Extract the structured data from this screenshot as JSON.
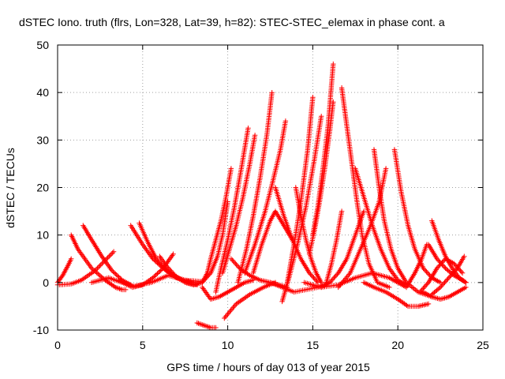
{
  "chart_data": {
    "type": "scatter",
    "title": "dSTEC Iono. truth (flrs, Lon=328, Lat=39, h=82): STEC-STEC_elemax in phase cont. a",
    "xlabel": "GPS time / hours of day 013 of year 2015",
    "ylabel": "dSTEC  / TECUs",
    "xlim": [
      0,
      25
    ],
    "ylim": [
      -10,
      50
    ],
    "xticks": [
      0,
      5,
      10,
      15,
      20,
      25
    ],
    "yticks": [
      -10,
      0,
      10,
      20,
      30,
      40,
      50
    ],
    "grid": true,
    "marker": "+",
    "colors": {
      "series": "#ff0000",
      "grid": "#a0a0a0"
    },
    "series": [
      {
        "x": [
          0,
          0.3,
          0.6,
          0.8
        ],
        "y": [
          0,
          1.5,
          3.5,
          5
        ]
      },
      {
        "x": [
          0,
          0.8,
          1.4,
          2.2,
          3.3
        ],
        "y": [
          -0.5,
          -0.3,
          0.5,
          2.5,
          6.5
        ]
      },
      {
        "x": [
          0.8,
          1.2,
          2.0,
          2.8,
          3.4,
          3.8,
          4.0
        ],
        "y": [
          10,
          7,
          3,
          0.5,
          -1,
          -1.5,
          -1.5
        ]
      },
      {
        "x": [
          1.5,
          2.0,
          2.6,
          3.2,
          3.8,
          4.3
        ],
        "y": [
          12,
          9,
          5.5,
          2.5,
          0.5,
          -0.5
        ]
      },
      {
        "x": [
          2.0,
          3.0,
          3.8,
          4.4,
          5.0,
          5.6,
          6.2,
          6.8
        ],
        "y": [
          0,
          1,
          0,
          -1,
          -0.5,
          1,
          3,
          6
        ]
      },
      {
        "x": [
          4.3,
          5.0,
          5.6,
          6.2,
          6.8,
          7.4,
          8.0
        ],
        "y": [
          12,
          8,
          5,
          3,
          1.5,
          0.5,
          0
        ]
      },
      {
        "x": [
          4.8,
          5.3,
          5.8,
          6.4,
          7.0,
          7.6,
          8.2
        ],
        "y": [
          12.5,
          8.5,
          5,
          2.5,
          1,
          0,
          -0.5
        ]
      },
      {
        "x": [
          3.6,
          4.5,
          5.5,
          6.5,
          7.5,
          8.5
        ],
        "y": [
          0.5,
          -0.8,
          0,
          1.5,
          0.5,
          0.2
        ]
      },
      {
        "x": [
          6.0,
          6.4,
          6.9,
          7.5,
          8.0
        ],
        "y": [
          5.5,
          3.5,
          1.5,
          0,
          -0.5
        ]
      },
      {
        "x": [
          7.5,
          8.0,
          8.5,
          9.0,
          9.4,
          9.7,
          10.0
        ],
        "y": [
          0,
          -0.5,
          0,
          2,
          5.5,
          10,
          17
        ]
      },
      {
        "x": [
          8.5,
          8.8,
          9.0,
          9.3,
          9.6,
          9.9,
          10.2
        ],
        "y": [
          0,
          2,
          5,
          9,
          13,
          18,
          24
        ]
      },
      {
        "x": [
          8.5,
          9.0,
          9.5,
          10.0,
          10.5,
          11.0,
          11.5
        ],
        "y": [
          -1,
          -3.5,
          -3,
          -2,
          -1,
          0,
          0.5
        ]
      },
      {
        "x": [
          8.2,
          8.6,
          9.0,
          9.3
        ],
        "y": [
          -8.5,
          -9,
          -9.5,
          -9.5
        ]
      },
      {
        "x": [
          9.3,
          9.6,
          10.0,
          10.4,
          10.8,
          11.2
        ],
        "y": [
          -2,
          3,
          9,
          16,
          24,
          32.5
        ]
      },
      {
        "x": [
          9.7,
          10.1,
          10.5,
          10.9,
          11.3,
          11.6
        ],
        "y": [
          2,
          7,
          12,
          18,
          25,
          31
        ]
      },
      {
        "x": [
          9.8,
          10.5,
          11.3,
          12.1,
          12.8
        ],
        "y": [
          -7.5,
          -4.5,
          -2.5,
          -1,
          0
        ]
      },
      {
        "x": [
          10.2,
          10.7,
          11.3,
          11.9,
          12.5,
          13.0,
          13.5
        ],
        "y": [
          5,
          3,
          1.5,
          0.5,
          0,
          -0.5,
          -1
        ]
      },
      {
        "x": [
          10.6,
          11.1,
          11.5,
          11.9,
          12.3,
          12.6
        ],
        "y": [
          0,
          7,
          14,
          22,
          31,
          40
        ]
      },
      {
        "x": [
          11.0,
          11.6,
          12.2,
          12.7,
          13.1,
          13.4
        ],
        "y": [
          2,
          8,
          15,
          22,
          28,
          34
        ]
      },
      {
        "x": [
          11.5,
          12.0,
          12.5,
          12.8,
          13.3,
          13.8
        ],
        "y": [
          2,
          8,
          13,
          15,
          12,
          9
        ]
      },
      {
        "x": [
          12.8,
          13.3,
          13.8,
          14.3,
          14.8,
          15.3
        ],
        "y": [
          20,
          14,
          9,
          5,
          2,
          0
        ]
      },
      {
        "x": [
          13.2,
          13.6,
          14.1,
          14.6,
          15.1,
          15.5
        ],
        "y": [
          -4,
          1,
          8,
          16,
          26,
          35
        ]
      },
      {
        "x": [
          13.5,
          13.9,
          14.3,
          14.7,
          15.0
        ],
        "y": [
          0,
          8,
          17,
          28,
          39
        ]
      },
      {
        "x": [
          12.5,
          13.2,
          13.9,
          14.6,
          15.3,
          16.0
        ],
        "y": [
          0,
          -1,
          -2,
          -1.5,
          -1,
          0
        ]
      },
      {
        "x": [
          14.0,
          14.3,
          14.6,
          14.9,
          15.2,
          15.5
        ],
        "y": [
          20,
          14,
          9,
          5,
          2,
          0
        ]
      },
      {
        "x": [
          14.8,
          15.1,
          15.4,
          15.7,
          16.0,
          16.2
        ],
        "y": [
          6,
          11,
          17,
          24,
          32,
          38
        ]
      },
      {
        "x": [
          15.0,
          15.3,
          15.6,
          15.9,
          16.2
        ],
        "y": [
          10,
          16,
          24,
          33,
          46
        ]
      },
      {
        "x": [
          15.5,
          16.0,
          16.5,
          17.0,
          17.5,
          18.0
        ],
        "y": [
          -1,
          0,
          2,
          5,
          10,
          15
        ]
      },
      {
        "x": [
          15.8,
          16.1,
          16.4,
          16.7
        ],
        "y": [
          0,
          4,
          9,
          15
        ]
      },
      {
        "x": [
          16.7,
          17.0,
          17.3,
          17.6,
          17.9,
          18.3,
          18.8,
          19.5
        ],
        "y": [
          41,
          33,
          25,
          17,
          10,
          4,
          0,
          -1
        ]
      },
      {
        "x": [
          17.5,
          18.0,
          18.5,
          19.0,
          19.5,
          20.0,
          20.5
        ],
        "y": [
          24,
          18,
          12,
          7,
          3,
          0.5,
          -0.5
        ]
      },
      {
        "x": [
          16.5,
          17.2,
          17.8,
          18.4,
          18.9,
          19.3
        ],
        "y": [
          -1,
          2,
          7,
          12,
          17,
          24
        ]
      },
      {
        "x": [
          14.5,
          15.5,
          16.5,
          17.5,
          18.5,
          19.5,
          20.5
        ],
        "y": [
          0,
          -1,
          -0.5,
          1,
          2,
          1,
          -1
        ]
      },
      {
        "x": [
          18.6,
          18.9,
          19.2,
          19.6,
          20.0,
          20.5,
          21.2,
          22.0
        ],
        "y": [
          28,
          20,
          13,
          7,
          3,
          0,
          -2,
          -3
        ]
      },
      {
        "x": [
          19.8,
          20.2,
          20.6,
          21.0,
          21.5,
          22.0,
          22.5
        ],
        "y": [
          28,
          19,
          12,
          7,
          3,
          1,
          0
        ]
      },
      {
        "x": [
          18.0,
          18.6,
          19.3,
          20.0,
          20.6,
          21.2,
          21.8
        ],
        "y": [
          0,
          -1,
          -2,
          -3.5,
          -5,
          -5,
          -4.5
        ]
      },
      {
        "x": [
          20.5,
          21.0,
          21.4,
          21.7
        ],
        "y": [
          -1,
          2,
          5,
          8
        ]
      },
      {
        "x": [
          22.0,
          22.4,
          22.8,
          23.2,
          23.6,
          24.0
        ],
        "y": [
          13,
          9,
          5.5,
          3,
          1,
          0
        ]
      },
      {
        "x": [
          21.5,
          22.0,
          22.5,
          23.0,
          23.5,
          24.0
        ],
        "y": [
          -2,
          -3,
          -3.5,
          -3,
          -2,
          -1
        ]
      },
      {
        "x": [
          21.3,
          21.8,
          22.3,
          22.8,
          23.3,
          23.8
        ],
        "y": [
          -2,
          0,
          3,
          5,
          4,
          2
        ]
      },
      {
        "x": [
          22.0,
          22.5,
          23.0,
          23.5,
          23.9
        ],
        "y": [
          -2.5,
          -1,
          1,
          3,
          5.5
        ]
      },
      {
        "x": [
          21.8,
          22.3,
          22.8,
          23.3,
          23.8,
          24.0
        ],
        "y": [
          8,
          5,
          3,
          1.5,
          0.5,
          0
        ]
      }
    ]
  }
}
